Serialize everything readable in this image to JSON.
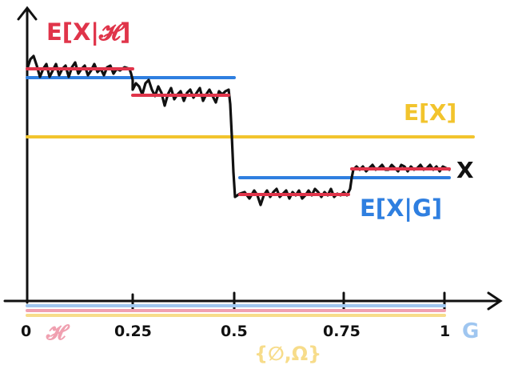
{
  "labels": {
    "cond_h": "E[X|𝓗]",
    "expect": "E[X]",
    "x": "X",
    "cond_g": "E[X|G]",
    "h": "𝓗",
    "g": "G",
    "trivial": "{∅,Ω}"
  },
  "ticks": [
    "0",
    "0.25",
    "0.5",
    "0.75",
    "1"
  ],
  "colors": {
    "red": "#e0344a",
    "blue": "#2f7fe0",
    "yellow": "#f2c42d",
    "black": "#111111",
    "pink": "#f0a0b0",
    "lightblue": "#9fc6f0",
    "lightyellow": "#f7dc8a"
  }
}
